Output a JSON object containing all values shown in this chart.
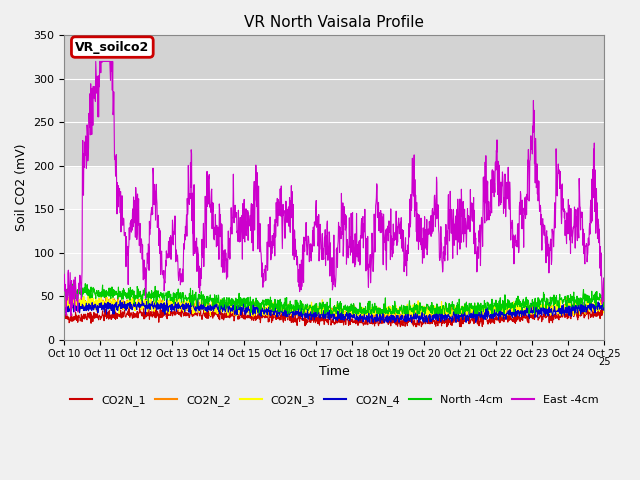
{
  "title": "VR North Vaisala Profile",
  "ylabel": "Soil CO2 (mV)",
  "xlabel": "Time",
  "ylim": [
    0,
    350
  ],
  "xlim": [
    0,
    25
  ],
  "x_tick_labels": [
    "Oct 10",
    "Oct 11",
    "Oct 12",
    "Oct 13",
    "Oct 14",
    "Oct 15",
    "Oct 16",
    "Oct 17",
    "Oct 18",
    "Oct 19",
    "Oct 20",
    "Oct 21",
    "Oct 22",
    "Oct 23",
    "Oct 24",
    "Oct 25"
  ],
  "x_tick_positions": [
    0,
    1,
    2,
    3,
    4,
    5,
    6,
    7,
    8,
    9,
    10,
    11,
    12,
    13,
    14,
    15
  ],
  "annotation_text": "VR_soilco2",
  "annotation_box_color": "#cc0000",
  "annotation_text_color": "black",
  "annotation_box_fill": "white",
  "shaded_region": [
    200,
    350
  ],
  "line_colors": {
    "CO2N_1": "#cc0000",
    "CO2N_2": "#ff8800",
    "CO2N_3": "#ffff00",
    "CO2N_4": "#0000cc",
    "North_4cm": "#00cc00",
    "East_4cm": "#cc00cc"
  },
  "legend_labels": [
    "CO2N_1",
    "CO2N_2",
    "CO2N_3",
    "CO2N_4",
    "North -4cm",
    "East -4cm"
  ],
  "background_color": "#e8e8e8",
  "plot_bg_color": "#f0f0f0"
}
